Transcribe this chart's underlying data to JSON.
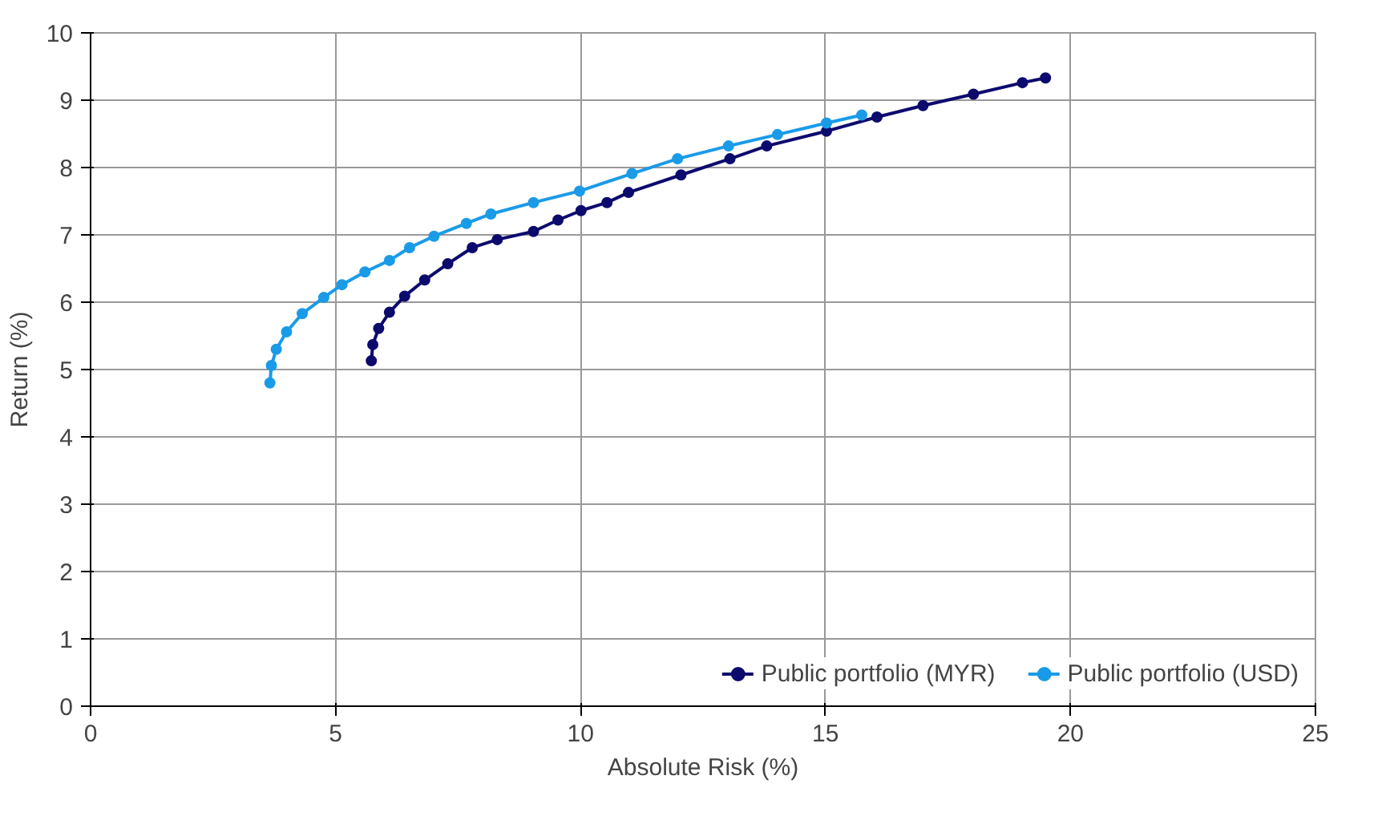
{
  "chart_data": {
    "type": "line",
    "xlabel": "Absolute Risk (%)",
    "ylabel": "Return (%)",
    "xlim": [
      0,
      25
    ],
    "xticks": [
      0,
      5,
      10,
      15,
      20,
      25
    ],
    "ylim": [
      0,
      10
    ],
    "yticks": [
      0,
      1,
      2,
      3,
      4,
      5,
      6,
      7,
      8,
      9,
      10
    ],
    "grid": true,
    "legend": "bottom",
    "marker": "circle",
    "line_style": "solid",
    "series": [
      {
        "name": "Public portfolio (MYR)",
        "color": "#0d0a6e",
        "x": [
          5.73,
          5.76,
          5.88,
          6.1,
          6.41,
          6.82,
          7.29,
          7.79,
          8.3,
          9.04,
          9.54,
          10.01,
          10.54,
          10.98,
          12.05,
          13.05,
          13.8,
          15.02,
          16.05,
          16.99,
          18.02,
          19.02,
          19.49
        ],
        "values": [
          5.13,
          5.37,
          5.61,
          5.85,
          6.09,
          6.33,
          6.57,
          6.81,
          6.93,
          7.05,
          7.22,
          7.36,
          7.48,
          7.63,
          7.89,
          8.13,
          8.32,
          8.54,
          8.75,
          8.92,
          9.09,
          9.26,
          9.33
        ]
      },
      {
        "name": "Public portfolio (USD)",
        "color": "#1a9be8",
        "x": [
          3.66,
          3.69,
          3.79,
          4.0,
          4.32,
          4.76,
          5.13,
          5.6,
          6.1,
          6.51,
          7.01,
          7.67,
          8.17,
          9.04,
          9.98,
          11.05,
          11.98,
          13.02,
          14.02,
          15.02,
          15.74
        ],
        "values": [
          4.8,
          5.06,
          5.3,
          5.56,
          5.83,
          6.07,
          6.26,
          6.45,
          6.62,
          6.81,
          6.98,
          7.17,
          7.31,
          7.48,
          7.65,
          7.91,
          8.13,
          8.32,
          8.49,
          8.66,
          8.78
        ]
      }
    ]
  }
}
